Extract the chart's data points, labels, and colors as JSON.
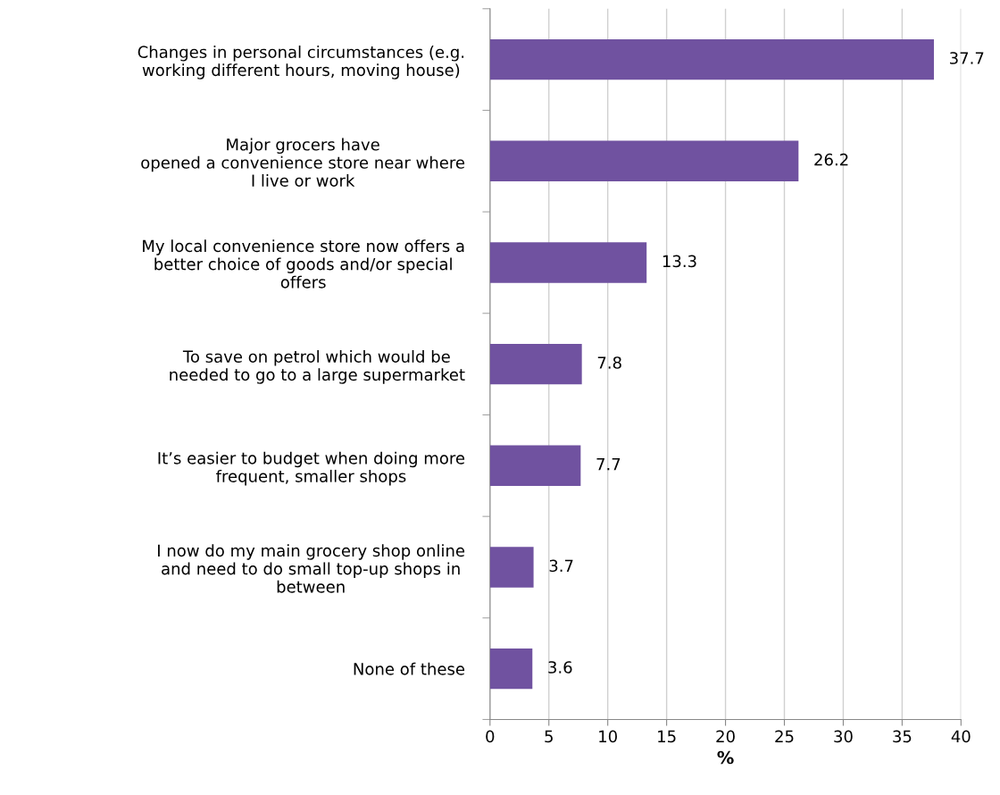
{
  "chart_data": {
    "type": "bar",
    "orientation": "horizontal",
    "categories": [
      "Changes in personal circumstances (e.g.\nworking different hours, moving house)",
      "Major grocers have\nopened a convenience store near where\nI live or work",
      "My local convenience store now offers a\nbetter choice of goods and/or special\noffers",
      "To save on petrol which would be\nneeded to go to a large supermarket",
      "It’s easier to budget when doing more\nfrequent, smaller shops",
      "I now do my main grocery shop online\nand need to do small top-up shops in\nbetween",
      "None of these"
    ],
    "values": [
      37.7,
      26.2,
      13.3,
      7.8,
      7.7,
      3.7,
      3.6
    ],
    "color": "#7052a0",
    "xlabel": "%",
    "xlim": [
      0,
      40
    ],
    "xticks": [
      0,
      5,
      10,
      15,
      20,
      25,
      30,
      35,
      40
    ],
    "grid": "x",
    "data_labels": true
  }
}
